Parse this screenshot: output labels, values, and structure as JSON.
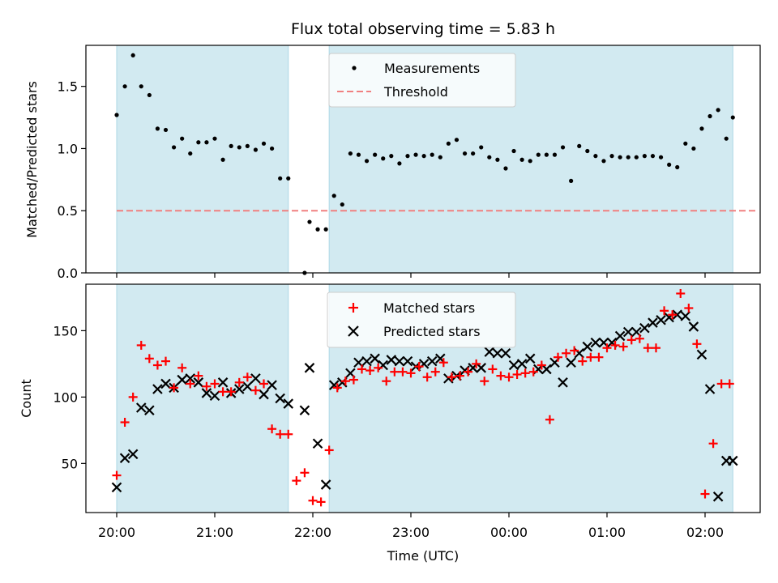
{
  "chart_data": [
    {
      "type": "scatter",
      "title": "Flux total observing time = 5.83 h",
      "xlabel": "",
      "ylabel": "Matched/Predicted stars",
      "ylim": [
        0,
        1.83
      ],
      "yticks": [
        "0.0",
        "0.5",
        "1.0",
        "1.5"
      ],
      "threshold": 0.5,
      "legend_position": "top-center",
      "shaded_periods": [
        [
          "20:00",
          "21:45"
        ],
        [
          "22:10",
          "02:17"
        ]
      ],
      "shade_color": "#add8e6",
      "series": [
        {
          "name": "Measurements",
          "marker": "dot",
          "color": "#000000",
          "x": [
            "20:00",
            "20:05",
            "20:10",
            "20:15",
            "20:20",
            "20:25",
            "20:30",
            "20:35",
            "20:40",
            "20:45",
            "20:50",
            "20:55",
            "21:00",
            "21:05",
            "21:10",
            "21:15",
            "21:20",
            "21:25",
            "21:30",
            "21:35",
            "21:40",
            "21:45",
            "21:55",
            "21:58",
            "22:03",
            "22:08",
            "22:13",
            "22:18",
            "22:23",
            "22:28",
            "22:33",
            "22:38",
            "22:43",
            "22:48",
            "22:53",
            "22:58",
            "23:03",
            "23:08",
            "23:13",
            "23:18",
            "23:23",
            "23:28",
            "23:33",
            "23:38",
            "23:43",
            "23:48",
            "23:53",
            "23:58",
            "00:03",
            "00:08",
            "00:13",
            "00:18",
            "00:23",
            "00:28",
            "00:33",
            "00:38",
            "00:43",
            "00:48",
            "00:53",
            "00:58",
            "01:03",
            "01:08",
            "01:13",
            "01:18",
            "01:23",
            "01:28",
            "01:33",
            "01:38",
            "01:43",
            "01:48",
            "01:53",
            "01:58",
            "02:03",
            "02:08",
            "02:13",
            "02:17"
          ],
          "y": [
            1.27,
            1.5,
            1.75,
            1.5,
            1.43,
            1.16,
            1.15,
            1.01,
            1.08,
            0.96,
            1.05,
            1.05,
            1.08,
            0.91,
            1.02,
            1.01,
            1.02,
            0.99,
            1.04,
            1.0,
            0.76,
            0.76,
            0.0,
            0.41,
            0.35,
            0.35,
            0.62,
            0.55,
            0.96,
            0.95,
            0.9,
            0.95,
            0.92,
            0.94,
            0.88,
            0.94,
            0.95,
            0.94,
            0.95,
            0.93,
            1.04,
            1.07,
            0.96,
            0.96,
            1.01,
            0.93,
            0.91,
            0.84,
            0.98,
            0.91,
            0.9,
            0.95,
            0.95,
            0.95,
            1.01,
            0.74,
            1.02,
            0.98,
            0.94,
            0.9,
            0.94,
            0.93,
            0.93,
            0.93,
            0.94,
            0.94,
            0.93,
            0.87,
            0.85,
            1.04,
            1.0,
            1.16,
            1.26,
            1.31,
            1.08,
            1.25
          ]
        },
        {
          "name": "Threshold",
          "marker": "dashed-line",
          "color": "#f08080"
        }
      ]
    },
    {
      "type": "scatter",
      "title": "",
      "xlabel": "Time (UTC)",
      "ylabel": "Count",
      "ylim": [
        13,
        185
      ],
      "yticks": [
        "50",
        "100",
        "150"
      ],
      "xticks": [
        "20:00",
        "21:00",
        "22:00",
        "23:00",
        "00:00",
        "01:00",
        "02:00"
      ],
      "legend_position": "top-center",
      "series": [
        {
          "name": "Matched stars",
          "marker": "plus",
          "color": "#ff0000",
          "x": [
            "20:00",
            "20:05",
            "20:10",
            "20:15",
            "20:20",
            "20:25",
            "20:30",
            "20:35",
            "20:40",
            "20:45",
            "20:50",
            "20:55",
            "21:00",
            "21:05",
            "21:10",
            "21:15",
            "21:20",
            "21:25",
            "21:30",
            "21:35",
            "21:40",
            "21:45",
            "21:50",
            "21:55",
            "22:00",
            "22:05",
            "22:10",
            "22:15",
            "22:20",
            "22:25",
            "22:30",
            "22:35",
            "22:40",
            "22:45",
            "22:50",
            "22:55",
            "23:00",
            "23:05",
            "23:10",
            "23:15",
            "23:20",
            "23:25",
            "23:30",
            "23:35",
            "23:40",
            "23:45",
            "23:50",
            "23:55",
            "00:00",
            "00:05",
            "00:10",
            "00:15",
            "00:20",
            "00:25",
            "00:30",
            "00:35",
            "00:40",
            "00:45",
            "00:50",
            "00:55",
            "01:00",
            "01:05",
            "01:10",
            "01:15",
            "01:20",
            "01:25",
            "01:30",
            "01:35",
            "01:40",
            "01:45",
            "01:50",
            "01:55",
            "02:00",
            "02:05",
            "02:10",
            "02:15"
          ],
          "y": [
            41,
            81,
            100,
            139,
            129,
            124,
            127,
            107,
            122,
            110,
            116,
            108,
            110,
            104,
            104,
            111,
            115,
            105,
            110,
            76,
            72,
            72,
            37,
            43,
            22,
            21,
            60,
            107,
            112,
            113,
            121,
            120,
            122,
            112,
            119,
            119,
            118,
            123,
            115,
            119,
            126,
            115,
            116,
            119,
            125,
            112,
            121,
            116,
            115,
            117,
            118,
            119,
            124,
            83,
            130,
            133,
            135,
            127,
            130,
            130,
            137,
            139,
            138,
            143,
            144,
            137,
            137,
            165,
            162,
            178,
            167,
            140,
            27,
            65,
            110,
            110
          ]
        },
        {
          "name": "Predicted stars",
          "marker": "x",
          "color": "#000000",
          "x": [
            "20:00",
            "20:05",
            "20:10",
            "20:15",
            "20:20",
            "20:25",
            "20:30",
            "20:35",
            "20:40",
            "20:45",
            "20:50",
            "20:55",
            "21:00",
            "21:05",
            "21:10",
            "21:15",
            "21:20",
            "21:25",
            "21:30",
            "21:35",
            "21:40",
            "21:45",
            "21:55",
            "21:58",
            "22:03",
            "22:08",
            "22:13",
            "22:18",
            "22:23",
            "22:28",
            "22:33",
            "22:38",
            "22:43",
            "22:48",
            "22:53",
            "22:58",
            "23:03",
            "23:08",
            "23:13",
            "23:18",
            "23:23",
            "23:28",
            "23:33",
            "23:38",
            "23:43",
            "23:48",
            "23:53",
            "23:58",
            "00:03",
            "00:08",
            "00:13",
            "00:18",
            "00:23",
            "00:28",
            "00:33",
            "00:38",
            "00:43",
            "00:48",
            "00:53",
            "00:58",
            "01:03",
            "01:08",
            "01:13",
            "01:18",
            "01:23",
            "01:28",
            "01:33",
            "01:38",
            "01:43",
            "01:48",
            "01:53",
            "01:58",
            "02:03",
            "02:08",
            "02:13",
            "02:17"
          ],
          "y": [
            32,
            54,
            57,
            92,
            90,
            106,
            110,
            107,
            113,
            114,
            111,
            103,
            101,
            111,
            103,
            106,
            108,
            114,
            102,
            109,
            99,
            95,
            90,
            122,
            65,
            34,
            109,
            111,
            118,
            126,
            127,
            129,
            124,
            128,
            127,
            127,
            123,
            125,
            127,
            129,
            114,
            116,
            120,
            122,
            122,
            134,
            133,
            133,
            124,
            125,
            129,
            121,
            121,
            126,
            111,
            126,
            133,
            138,
            141,
            141,
            141,
            146,
            149,
            149,
            152,
            156,
            158,
            160,
            162,
            161,
            153,
            132,
            106,
            25,
            52,
            52
          ]
        }
      ]
    }
  ]
}
